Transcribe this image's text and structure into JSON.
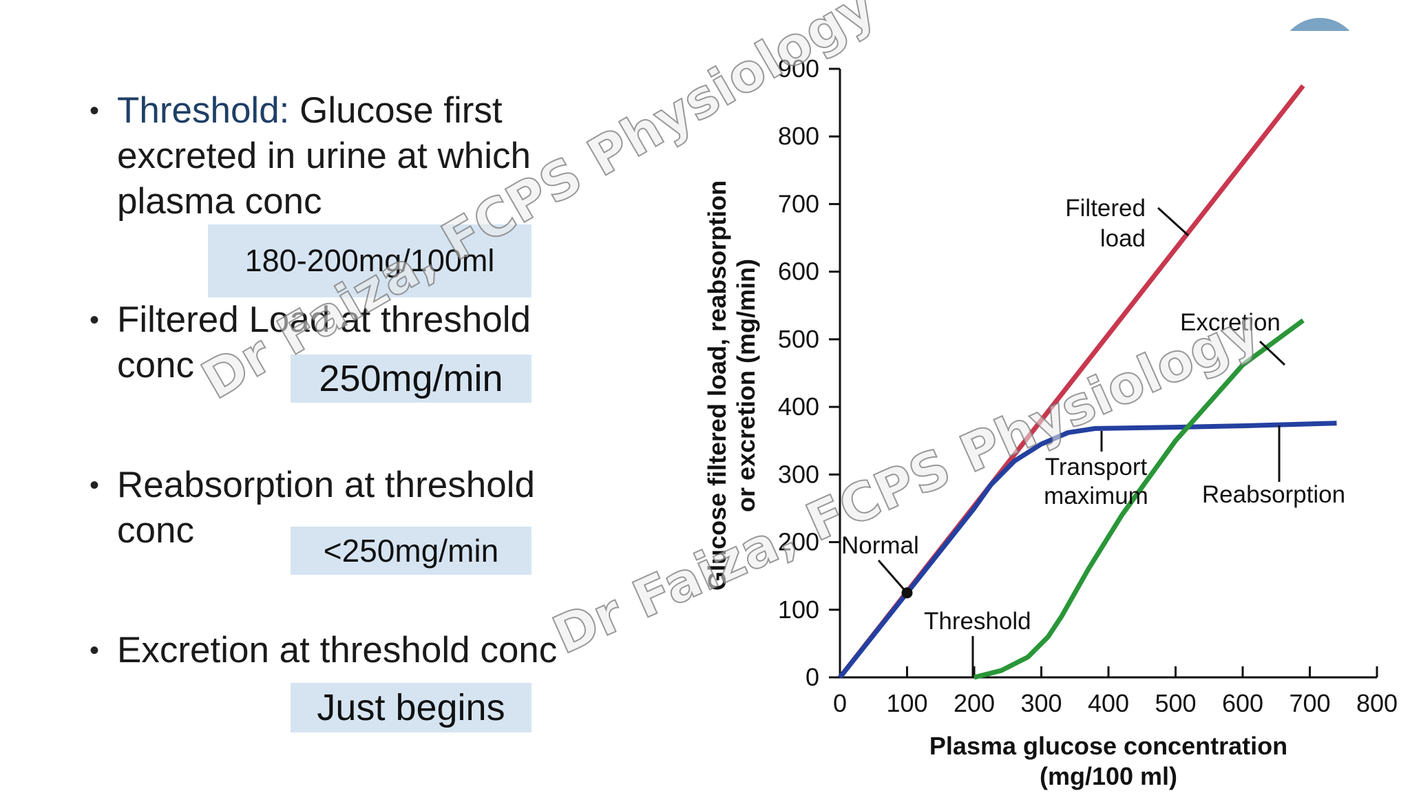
{
  "bullets": [
    {
      "term": "Threshold:",
      "text_line1": " Glucose first",
      "text_line2": "excreted in urine at which",
      "text_line3": "plasma conc",
      "answer": "180-200mg/100ml"
    },
    {
      "text_line1": "Filtered Load at threshold",
      "text_line2": "conc",
      "answer": "250mg/min"
    },
    {
      "text_line1": "Reabsorption at threshold",
      "text_line2": "conc",
      "answer": "<250mg/min"
    },
    {
      "text_line1": "Excretion at threshold conc",
      "answer": "Just begins"
    }
  ],
  "watermark": "Dr Faiza, FCPS Physiology",
  "chart_data": {
    "type": "line",
    "xlabel_line1": "Plasma glucose concentration",
    "xlabel_line2": "(mg/100 ml)",
    "ylabel_line1": "Glucose filtered load, reabsorption",
    "ylabel_line2": "or excretion (mg/min)",
    "xlim": [
      0,
      800
    ],
    "ylim": [
      0,
      900
    ],
    "xticks": [
      0,
      100,
      200,
      300,
      400,
      500,
      600,
      700,
      800
    ],
    "yticks": [
      0,
      100,
      200,
      300,
      400,
      500,
      600,
      700,
      800,
      900
    ],
    "series": [
      {
        "name": "Filtered load",
        "color": "#c8384f",
        "points": [
          [
            0,
            0
          ],
          [
            690,
            875
          ]
        ]
      },
      {
        "name": "Reabsorption",
        "color": "#2440a0",
        "points": [
          [
            0,
            0
          ],
          [
            200,
            250
          ],
          [
            225,
            285
          ],
          [
            260,
            320
          ],
          [
            300,
            345
          ],
          [
            340,
            362
          ],
          [
            380,
            368
          ],
          [
            500,
            370
          ],
          [
            600,
            372
          ],
          [
            740,
            376
          ]
        ]
      },
      {
        "name": "Excretion",
        "color": "#2a9638",
        "points": [
          [
            200,
            0
          ],
          [
            240,
            10
          ],
          [
            280,
            30
          ],
          [
            310,
            60
          ],
          [
            330,
            90
          ],
          [
            370,
            160
          ],
          [
            420,
            240
          ],
          [
            500,
            350
          ],
          [
            600,
            462
          ],
          [
            690,
            528
          ]
        ]
      }
    ],
    "annotations": {
      "filtered_line1": "Filtered",
      "filtered_line2": "load",
      "excretion": "Excretion",
      "transport_line1": "Transport",
      "transport_line2": "maximum",
      "reabsorption": "Reabsorption",
      "normal": "Normal",
      "threshold": "Threshold"
    },
    "normal_point": [
      100,
      125
    ]
  }
}
